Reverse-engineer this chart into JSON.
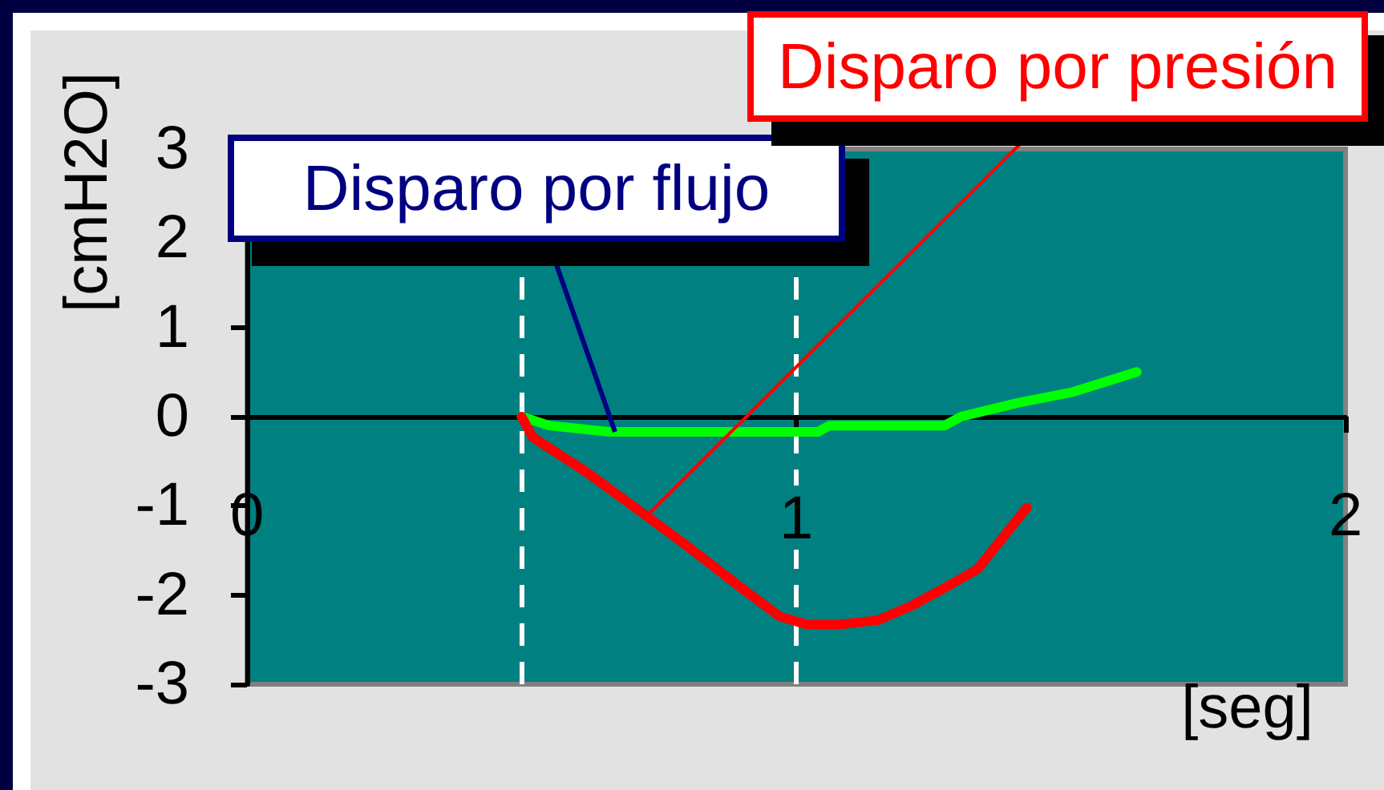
{
  "chart_data": {
    "type": "line",
    "xlabel": "[seg]",
    "ylabel": "[cmH2O]",
    "xlim": [
      0,
      2
    ],
    "xticks": [
      0,
      1,
      2
    ],
    "ylim": [
      -3,
      3
    ],
    "yticks": [
      -3,
      -2,
      -1,
      0,
      1,
      2,
      3
    ],
    "series": [
      {
        "color": "#00ff00",
        "x": [
          0.5,
          0.55,
          0.66,
          1.04,
          1.06,
          1.27,
          1.3,
          1.4,
          1.5,
          1.62
        ],
        "values": [
          0,
          -0.1,
          -0.17,
          -0.17,
          -0.1,
          -0.1,
          0,
          0.15,
          0.27,
          0.5
        ]
      },
      {
        "color": "#ff0000",
        "x": [
          0.5,
          0.52,
          0.62,
          0.72,
          0.81,
          0.9,
          0.97,
          1.02,
          1.08,
          1.15,
          1.21,
          1.27,
          1.33,
          1.42
        ],
        "values": [
          0,
          -0.23,
          -0.63,
          -1.08,
          -1.49,
          -1.92,
          -2.24,
          -2.33,
          -2.33,
          -2.28,
          -2.12,
          -1.92,
          -1.71,
          -1.02
        ]
      }
    ],
    "ref_lines": [
      {
        "axis": "x",
        "value": 0.5,
        "color": "#ffffff",
        "line_style": "dashed"
      },
      {
        "axis": "x",
        "value": 1,
        "color": "#ffffff",
        "line_style": "dashed"
      }
    ],
    "annotations": [
      {
        "text": "Disparo por flujo",
        "x": 0.67,
        "y": -0.17
      },
      {
        "text": "Disparo por presión",
        "x": 0.73,
        "y": -1.1
      }
    ],
    "grid": false,
    "marker": "none"
  }
}
